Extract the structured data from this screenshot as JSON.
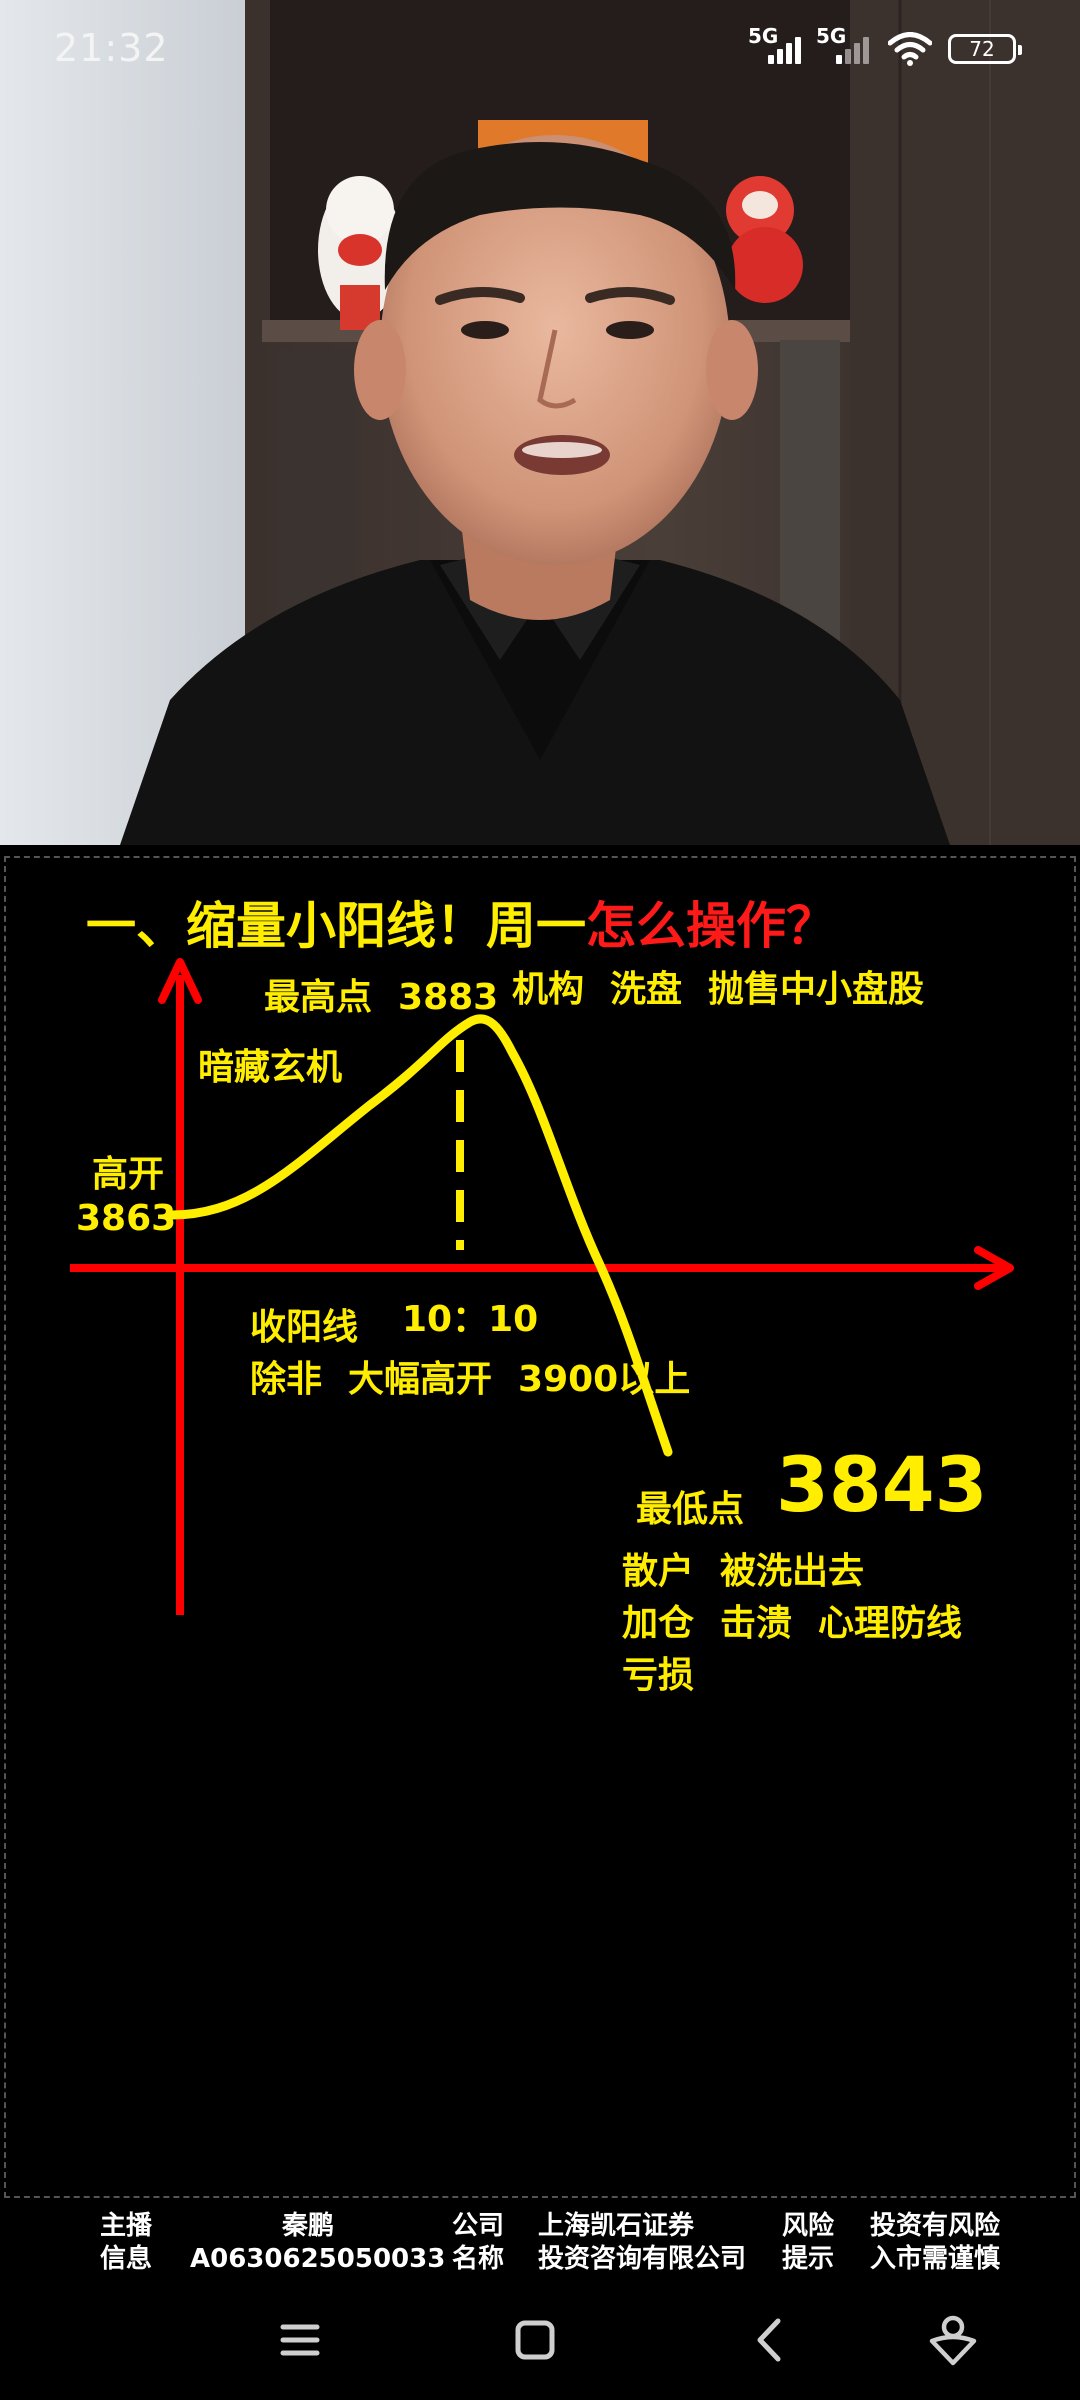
{
  "status_bar": {
    "time": "21:32",
    "network_1": "5G",
    "network_2": "5G",
    "battery_level": "72",
    "icons": [
      "signal-icon",
      "signal-icon",
      "wifi-icon",
      "battery-icon"
    ]
  },
  "slide": {
    "title_yellow": "一、缩量小阳线！周一",
    "title_red": "怎么操作？",
    "labels": {
      "high_point": [
        "最高点",
        "3883"
      ],
      "institution": [
        "机构",
        "洗盘",
        "抛售中小盘股"
      ],
      "hidden": "暗藏玄机",
      "open_high_label": "高开",
      "open_high_value": "3863",
      "close_positive": "收阳线",
      "time": "10：10",
      "unless": [
        "除非",
        "大幅高开",
        "3900以上"
      ],
      "low_point_label": "最低点",
      "low_point_value": "3843",
      "retail": [
        "散户",
        "被洗出去"
      ],
      "add_position": [
        "加仓",
        "击溃",
        "心理防线"
      ],
      "loss": "亏损"
    },
    "colors": {
      "title_yellow": "#ffee00",
      "title_red": "#ff1a1a",
      "axis": "#ff0000",
      "curve": "#ffee00"
    }
  },
  "footer": {
    "host_label_1": "主播",
    "host_label_2": "信息",
    "host_name": "秦鹏",
    "host_id": "A0630625050033",
    "company_label_1": "公司",
    "company_label_2": "名称",
    "company_name_1": "上海凯石证券",
    "company_name_2": "投资咨询有限公司",
    "risk_label_1": "风险",
    "risk_label_2": "提示",
    "risk_text_1": "投资有风险",
    "risk_text_2": "入市需谨慎"
  },
  "nav_bar": {
    "icons": [
      "menu-icon",
      "home-icon",
      "back-icon",
      "assistant-icon"
    ]
  }
}
